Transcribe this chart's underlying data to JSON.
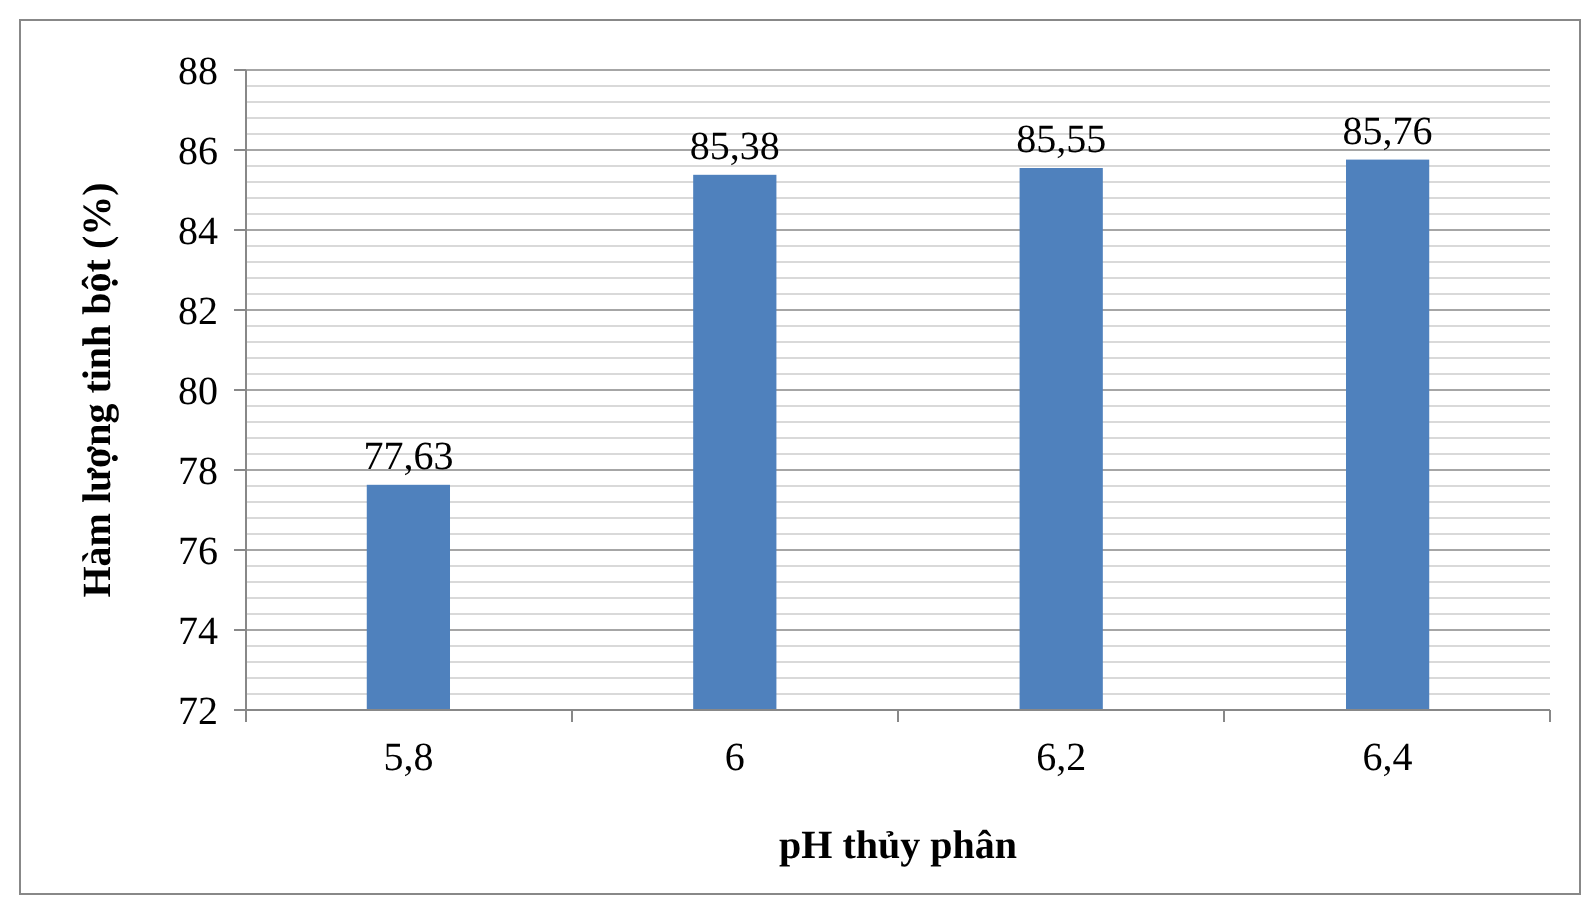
{
  "chart_data": {
    "type": "bar",
    "xlabel": "pH thủy phân",
    "ylabel": "Hàm lượng tinh bột (%)",
    "categories": [
      "5,8",
      "6",
      "6,2",
      "6,4"
    ],
    "values": [
      77.63,
      85.38,
      85.55,
      85.76
    ],
    "value_labels": [
      "77,63",
      "85,38",
      "85,55",
      "85,76"
    ],
    "color": "#4f81bd",
    "ylim": [
      72,
      88
    ],
    "yticks": [
      72,
      74,
      76,
      78,
      80,
      82,
      84,
      86,
      88
    ],
    "grid": "y"
  }
}
